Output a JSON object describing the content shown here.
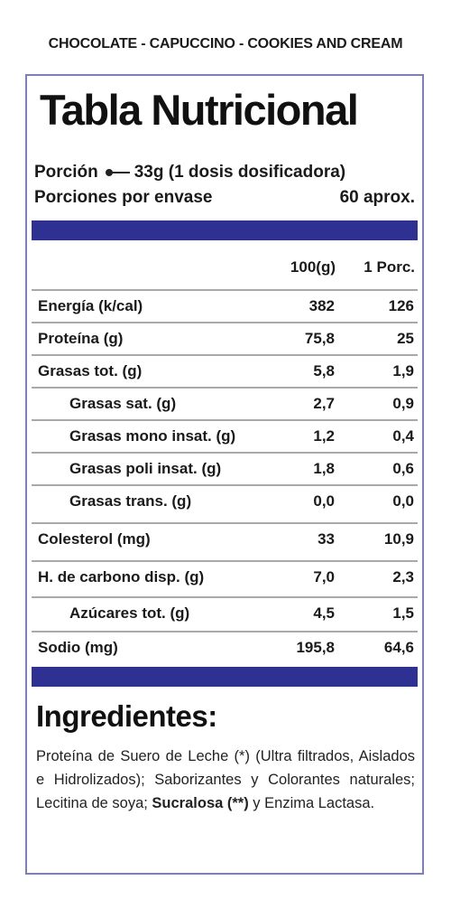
{
  "header": {
    "flavors": "CHOCOLATE - CAPUCCINO - COOKIES AND CREAM"
  },
  "table": {
    "title": "Tabla Nutricional",
    "serving_label": "Porción",
    "serving_value": "33g (1 dosis dosificadora)",
    "servings_label": "Porciones por envase",
    "servings_value": "60 aprox.",
    "col1": "100(g)",
    "col2": "1 Porc.",
    "rows": [
      {
        "label": "Energía (k/cal)",
        "v100": "382",
        "vporc": "126"
      },
      {
        "label": "Proteína (g)",
        "v100": "75,8",
        "vporc": "25"
      },
      {
        "label": "Grasas tot. (g)",
        "v100": "5,8",
        "vporc": "1,9"
      },
      {
        "label": "Grasas sat. (g)",
        "v100": "2,7",
        "vporc": "0,9"
      },
      {
        "label": "Grasas mono insat. (g)",
        "v100": "1,2",
        "vporc": "0,4"
      },
      {
        "label": "Grasas poli insat. (g)",
        "v100": "1,8",
        "vporc": "0,6"
      },
      {
        "label": "Grasas trans. (g)",
        "v100": "0,0",
        "vporc": "0,0"
      },
      {
        "label": "Colesterol (mg)",
        "v100": "33",
        "vporc": "10,9"
      },
      {
        "label": "H. de carbono disp. (g)",
        "v100": "7,0",
        "vporc": "2,3"
      },
      {
        "label": "Azúcares tot. (g)",
        "v100": "4,5",
        "vporc": "1,5"
      },
      {
        "label": "Sodio (mg)",
        "v100": "195,8",
        "vporc": "64,6"
      }
    ]
  },
  "ingredients": {
    "title": "Ingredientes:",
    "text_part1": "Proteína de Suero de Leche (*) (Ultra filtrados, Aislados e Hidrolizados); Saborizantes y Colorantes naturales; Lecitina de soya; ",
    "text_bold": "Sucralosa (**)",
    "text_part2": " y Enzima Lactasa."
  },
  "colors": {
    "accent_bar": "#2e3192",
    "border": "#7d7fb6"
  }
}
